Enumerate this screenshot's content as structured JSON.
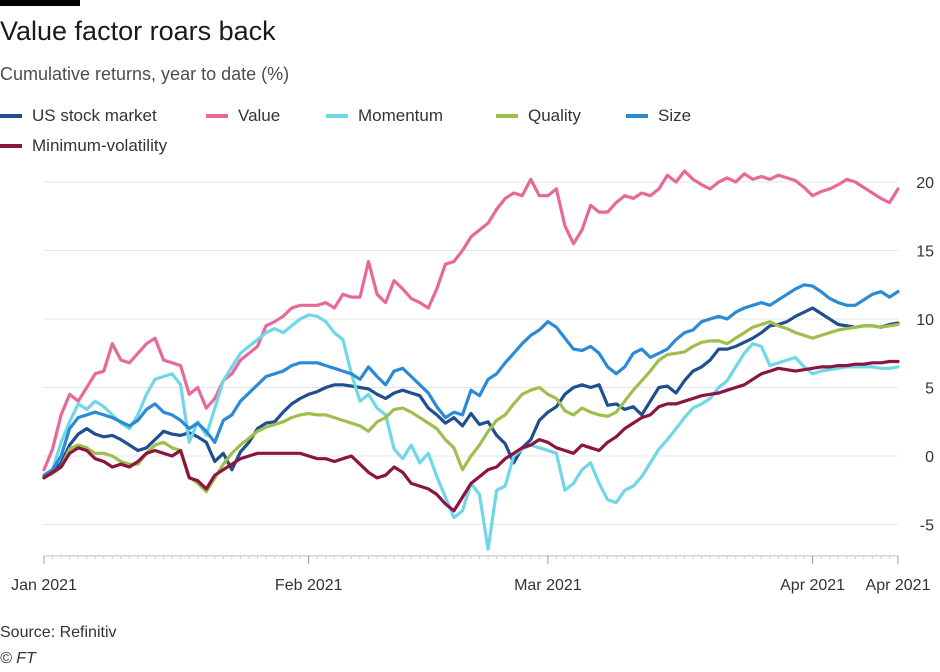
{
  "title": "Value factor roars back",
  "subtitle": "Cumulative returns, year to date (%)",
  "source": "Source: Refinitiv",
  "credit": "© FT",
  "chart_data": {
    "type": "line",
    "title": "Value factor roars back",
    "subtitle": "Cumulative returns, year to date (%)",
    "xlabel": "",
    "ylabel": "",
    "ylim": [
      -7,
      21
    ],
    "yticks": [
      -5,
      0,
      5,
      10,
      15,
      20
    ],
    "grid": true,
    "legend_position": "top-left",
    "x_tick_labels": [
      "Jan 2021",
      "Feb 2021",
      "Mar 2021",
      "Apr 2021",
      "Apr 2021"
    ],
    "x_tick_days": [
      0,
      31,
      59,
      90,
      100
    ],
    "x": [
      0,
      1,
      2,
      3,
      4,
      5,
      6,
      7,
      8,
      9,
      10,
      11,
      12,
      13,
      14,
      15,
      16,
      17,
      18,
      19,
      20,
      21,
      22,
      23,
      24,
      25,
      26,
      27,
      28,
      29,
      30,
      31,
      32,
      33,
      34,
      35,
      36,
      37,
      38,
      39,
      40,
      41,
      42,
      43,
      44,
      45,
      46,
      47,
      48,
      49,
      50,
      51,
      52,
      53,
      54,
      55,
      56,
      57,
      58,
      59,
      60,
      61,
      62,
      63,
      64,
      65,
      66,
      67,
      68,
      69,
      70,
      71,
      72,
      73,
      74,
      75,
      76,
      77,
      78,
      79,
      80,
      81,
      82,
      83,
      84,
      85,
      86,
      87,
      88,
      89,
      90,
      91,
      92,
      93,
      94,
      95,
      96,
      97,
      98,
      99,
      100
    ],
    "series": [
      {
        "name": "US stock market",
        "color": "#1f4f8f",
        "values": [
          -1.5,
          -1.2,
          -0.5,
          0.8,
          1.6,
          2,
          1.6,
          1.4,
          1.5,
          1.2,
          0.8,
          0.4,
          0.6,
          1.2,
          1.8,
          1.6,
          1.5,
          1.7,
          1.4,
          1.0,
          -0.4,
          0.2,
          -1.0,
          0.3,
          1.0,
          2.0,
          2.4,
          2.5,
          3.2,
          3.8,
          4.2,
          4.5,
          4.7,
          5.0,
          5.2,
          5.2,
          5.1,
          5.0,
          4.9,
          4.5,
          4.2,
          4.6,
          4.8,
          4.6,
          4.4,
          3.5,
          3.0,
          2.4,
          2.8,
          2.2,
          3.1,
          2.3,
          2.5,
          1.5,
          0.9,
          -0.5,
          0.6,
          1.2,
          2.6,
          3.2,
          3.6,
          4.5,
          5.0,
          5.2,
          5.0,
          5.2,
          3.7,
          3.8,
          3.4,
          3.6,
          3.0,
          4.0,
          5.0,
          5.1,
          4.6,
          5.5,
          6.2,
          6.5,
          7.0,
          7.8,
          7.8,
          8.0,
          8.3,
          8.6,
          9.0,
          9.5,
          9.6,
          9.8,
          10.2,
          10.5,
          10.8,
          10.4,
          10.0,
          9.6,
          9.5,
          9.4,
          9.5,
          9.5,
          9.4,
          9.6,
          9.7
        ]
      },
      {
        "name": "Value",
        "color": "#e8689a",
        "values": [
          -1.0,
          0.5,
          3.0,
          4.5,
          4.0,
          5.0,
          6.0,
          6.2,
          8.2,
          7.0,
          6.8,
          7.5,
          8.2,
          8.6,
          7.0,
          6.8,
          6.6,
          4.5,
          5.0,
          3.5,
          4.2,
          5.5,
          6.0,
          7.0,
          7.5,
          8.0,
          9.5,
          9.8,
          10.2,
          10.8,
          11.0,
          11.0,
          11.0,
          11.2,
          10.8,
          11.8,
          11.6,
          11.6,
          14.2,
          11.8,
          11.2,
          12.8,
          12.2,
          11.5,
          11.2,
          10.8,
          12.2,
          14.0,
          14.2,
          15.0,
          16.0,
          16.5,
          17.0,
          18.0,
          18.8,
          19.2,
          19.0,
          20.2,
          19.0,
          19.0,
          19.5,
          16.8,
          15.5,
          16.5,
          18.3,
          17.8,
          17.8,
          18.5,
          19.0,
          18.8,
          19.2,
          19.0,
          19.5,
          20.5,
          20.0,
          20.8,
          20.2,
          19.8,
          19.5,
          20.0,
          20.3,
          20.0,
          20.6,
          20.2,
          20.4,
          20.2,
          20.5,
          20.3,
          20.1,
          19.6,
          19.0,
          19.3,
          19.5,
          19.8,
          20.2,
          20.0,
          19.6,
          19.2,
          18.8,
          18.5,
          19.5
        ]
      },
      {
        "name": "Momentum",
        "color": "#6fd7e8",
        "values": [
          -1.6,
          -1.0,
          1.0,
          2.5,
          3.8,
          3.4,
          4.0,
          3.6,
          3.0,
          2.4,
          2.0,
          3.0,
          4.5,
          5.6,
          5.8,
          6.0,
          5.2,
          1.0,
          2.5,
          1.5,
          3.5,
          5.5,
          6.5,
          7.5,
          8.0,
          8.5,
          9.0,
          9.3,
          9.0,
          9.5,
          10.0,
          10.3,
          10.2,
          9.8,
          9.0,
          8.5,
          6.0,
          4.0,
          4.5,
          3.5,
          3.0,
          0.5,
          -0.2,
          0.8,
          -0.5,
          0.2,
          -1.5,
          -3.0,
          -4.5,
          -4.0,
          -2.0,
          -2.8,
          -6.8,
          -2.5,
          -2.2,
          0.0,
          0.5,
          0.8,
          0.6,
          0.4,
          0.2,
          -2.5,
          -2.0,
          -1.0,
          -0.5,
          -2.0,
          -3.2,
          -3.4,
          -2.5,
          -2.2,
          -1.5,
          -0.5,
          0.5,
          1.2,
          2.0,
          2.8,
          3.5,
          3.8,
          4.2,
          5.0,
          5.5,
          6.5,
          7.5,
          8.2,
          8.0,
          6.6,
          6.8,
          7.0,
          7.2,
          6.5,
          6.0,
          6.2,
          6.3,
          6.4,
          6.5,
          6.5,
          6.5,
          6.5,
          6.4,
          6.4,
          6.5
        ]
      },
      {
        "name": "Quality",
        "color": "#9fbe4c",
        "values": [
          -1.5,
          -1.3,
          -0.8,
          0.5,
          0.8,
          0.6,
          0.2,
          0.2,
          0.0,
          -0.4,
          -0.6,
          -0.6,
          0.2,
          0.8,
          1.0,
          0.6,
          0.4,
          -1.5,
          -2.0,
          -2.6,
          -1.6,
          -0.6,
          0.2,
          0.8,
          1.3,
          1.8,
          2.1,
          2.3,
          2.5,
          2.8,
          3.0,
          3.1,
          3.0,
          3.0,
          2.8,
          2.6,
          2.4,
          2.2,
          1.8,
          2.5,
          2.8,
          3.4,
          3.5,
          3.2,
          2.8,
          2.4,
          2.0,
          1.2,
          0.6,
          -1.0,
          0.0,
          0.8,
          1.8,
          2.6,
          3.0,
          3.8,
          4.5,
          4.8,
          5.0,
          4.5,
          4.2,
          3.3,
          3.0,
          3.5,
          3.2,
          3.0,
          2.9,
          3.2,
          4.0,
          4.8,
          5.5,
          6.2,
          7.0,
          7.4,
          7.5,
          7.6,
          8.0,
          8.3,
          8.4,
          8.4,
          8.2,
          8.6,
          9.0,
          9.4,
          9.6,
          9.8,
          9.5,
          9.3,
          9.0,
          8.8,
          8.6,
          8.8,
          9.0,
          9.2,
          9.3,
          9.4,
          9.5,
          9.5,
          9.4,
          9.5,
          9.6
        ]
      },
      {
        "name": "Size",
        "color": "#2b8ad6",
        "values": [
          -1.4,
          -1.0,
          0.0,
          2.0,
          2.8,
          3.0,
          3.2,
          3.0,
          2.8,
          2.5,
          2.2,
          2.6,
          3.4,
          3.8,
          3.2,
          3.0,
          2.6,
          2.0,
          2.4,
          1.8,
          1.0,
          2.6,
          3.0,
          4.0,
          4.6,
          5.2,
          5.8,
          6.0,
          6.2,
          6.6,
          6.8,
          6.8,
          6.8,
          6.6,
          6.4,
          6.2,
          6.0,
          5.6,
          6.5,
          5.8,
          5.2,
          6.2,
          6.4,
          5.8,
          5.2,
          4.6,
          3.6,
          2.8,
          3.2,
          3.0,
          4.8,
          4.4,
          5.6,
          6.0,
          6.8,
          7.5,
          8.2,
          8.8,
          9.2,
          9.8,
          9.4,
          8.6,
          7.8,
          7.7,
          8.0,
          7.5,
          6.5,
          6.0,
          6.5,
          7.5,
          7.8,
          7.2,
          7.5,
          7.8,
          8.5,
          9.0,
          9.2,
          9.8,
          10.0,
          10.2,
          10.0,
          10.5,
          10.8,
          11.0,
          11.2,
          11.0,
          11.4,
          11.8,
          12.2,
          12.5,
          12.4,
          12.0,
          11.5,
          11.2,
          11.0,
          11.0,
          11.4,
          11.8,
          12.0,
          11.6,
          12.0
        ]
      },
      {
        "name": "Minimum-volatility",
        "color": "#8b1441",
        "values": [
          -1.6,
          -1.2,
          -0.8,
          0.2,
          0.6,
          0.4,
          -0.2,
          -0.4,
          -0.8,
          -0.6,
          -0.8,
          -0.4,
          0.2,
          0.4,
          0.2,
          0.0,
          0.4,
          -1.6,
          -1.8,
          -2.4,
          -1.4,
          -1.0,
          -0.6,
          -0.2,
          0.0,
          0.2,
          0.2,
          0.2,
          0.2,
          0.2,
          0.2,
          0.0,
          -0.2,
          -0.2,
          -0.4,
          -0.2,
          0.0,
          -0.6,
          -1.2,
          -1.6,
          -1.4,
          -0.8,
          -1.2,
          -2.0,
          -2.2,
          -2.4,
          -2.8,
          -3.5,
          -4.0,
          -3.0,
          -2.0,
          -1.5,
          -1.0,
          -0.8,
          -0.2,
          0.2,
          0.6,
          0.8,
          1.2,
          1.0,
          0.6,
          0.4,
          0.2,
          0.8,
          0.6,
          0.4,
          1.0,
          1.4,
          2.0,
          2.4,
          2.8,
          3.0,
          3.6,
          3.8,
          3.8,
          4.0,
          4.2,
          4.4,
          4.5,
          4.6,
          4.8,
          5.0,
          5.2,
          5.6,
          6.0,
          6.2,
          6.4,
          6.3,
          6.2,
          6.3,
          6.4,
          6.5,
          6.5,
          6.6,
          6.6,
          6.7,
          6.7,
          6.8,
          6.8,
          6.9,
          6.9
        ]
      }
    ]
  }
}
